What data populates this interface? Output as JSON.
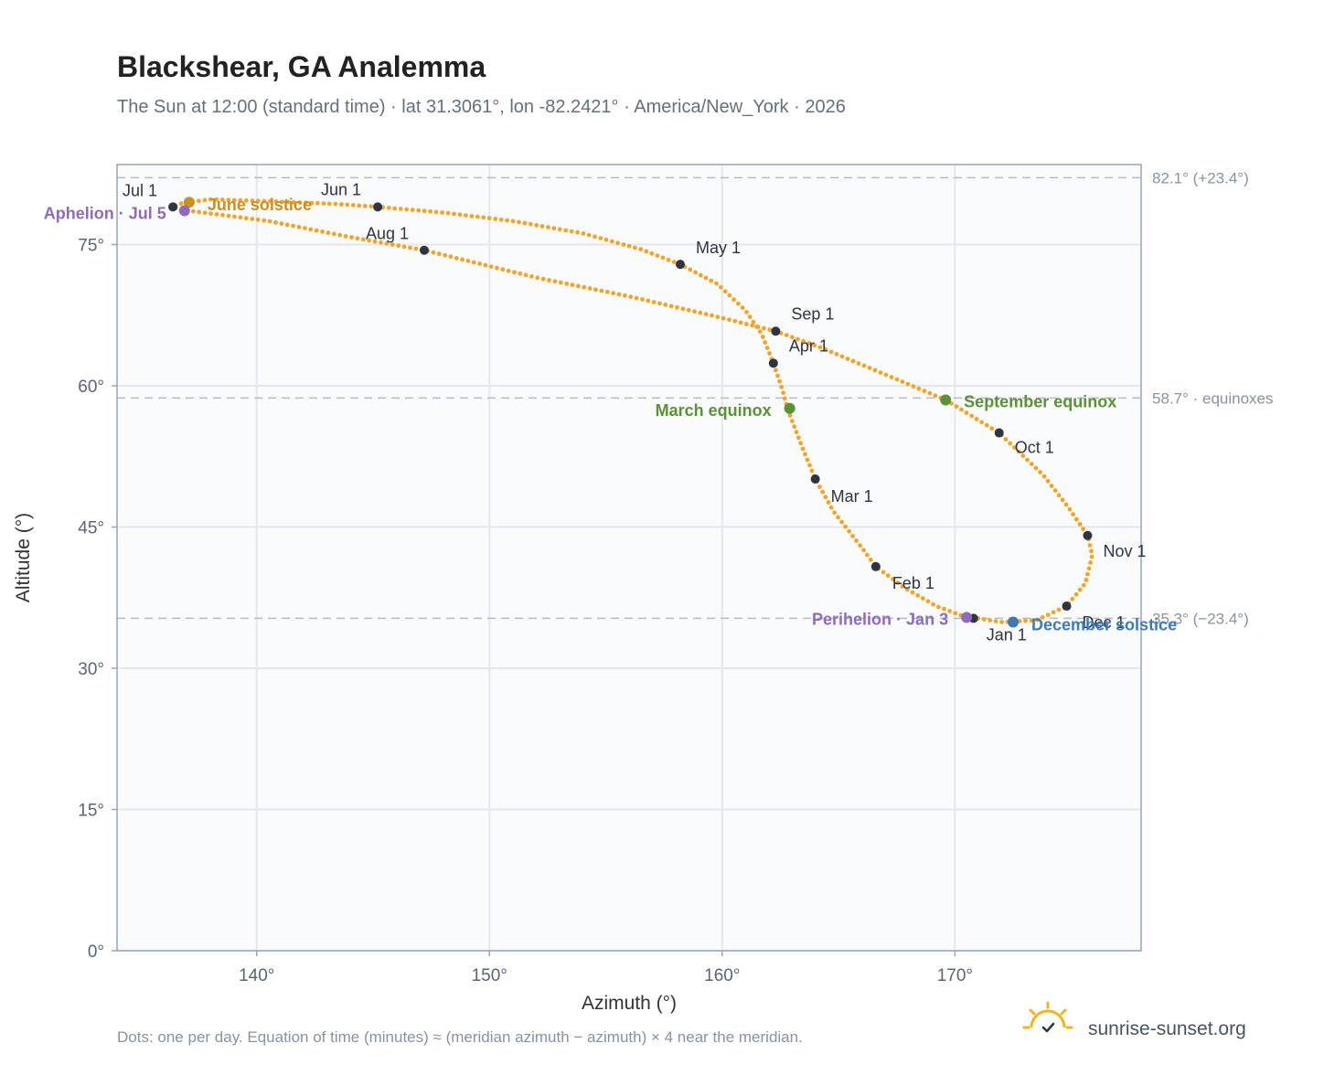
{
  "chart_data": {
    "type": "scatter",
    "title": "Blackshear, GA Analemma",
    "subtitle": "The Sun at 12:00 (standard time) · lat 31.3061°, lon -82.2421° · America/New_York · 2026",
    "xlabel": "Azimuth (°)",
    "ylabel": "Altitude (°)",
    "xlim": [
      134,
      178
    ],
    "ylim": [
      0,
      82.1
    ],
    "x_ticks": [
      140,
      150,
      160,
      170
    ],
    "x_tick_labels": [
      "140°",
      "150°",
      "160°",
      "170°"
    ],
    "y_ticks": [
      0,
      15,
      30,
      45,
      60,
      75
    ],
    "y_tick_labels": [
      "0°",
      "15°",
      "30°",
      "45°",
      "60°",
      "75°"
    ],
    "grid": true,
    "reference_lines": [
      {
        "y": 82.1,
        "label": "82.1° (+23.4°)"
      },
      {
        "y": 58.7,
        "label": "58.7° · equinoxes"
      },
      {
        "y": 35.3,
        "label": "35.3° (−23.4°)"
      }
    ],
    "path_points": [
      [
        171.0,
        35.3
      ],
      [
        172.0,
        34.9
      ],
      [
        173.5,
        35.1
      ],
      [
        174.8,
        36.6
      ],
      [
        175.6,
        39.0
      ],
      [
        175.9,
        42.0
      ],
      [
        175.7,
        44.1
      ],
      [
        174.9,
        47.0
      ],
      [
        173.8,
        50.5
      ],
      [
        171.9,
        55.0
      ],
      [
        169.6,
        58.5
      ],
      [
        167.0,
        61.2
      ],
      [
        164.3,
        64.0
      ],
      [
        162.3,
        65.8
      ],
      [
        159.5,
        67.5
      ],
      [
        156.0,
        69.5
      ],
      [
        152.0,
        71.5
      ],
      [
        147.2,
        74.4
      ],
      [
        144.0,
        75.8
      ],
      [
        140.5,
        77.5
      ],
      [
        138.0,
        78.3
      ],
      [
        136.8,
        78.7
      ],
      [
        136.4,
        79.0
      ],
      [
        136.8,
        79.4
      ],
      [
        138.0,
        79.8
      ],
      [
        140.5,
        79.6
      ],
      [
        143.5,
        79.3
      ],
      [
        145.2,
        79.0
      ],
      [
        148.0,
        78.4
      ],
      [
        151.0,
        77.5
      ],
      [
        154.0,
        76.2
      ],
      [
        156.5,
        74.5
      ],
      [
        158.2,
        72.9
      ],
      [
        159.8,
        70.8
      ],
      [
        161.0,
        68.0
      ],
      [
        161.7,
        65.5
      ],
      [
        162.2,
        62.4
      ],
      [
        162.6,
        59.5
      ],
      [
        162.8,
        57.6
      ],
      [
        163.2,
        55.0
      ],
      [
        163.6,
        52.5
      ],
      [
        164.0,
        50.1
      ],
      [
        164.8,
        46.6
      ],
      [
        166.0,
        42.8
      ],
      [
        166.6,
        40.8
      ],
      [
        167.8,
        38.6
      ],
      [
        169.2,
        36.6
      ],
      [
        170.5,
        35.4
      ],
      [
        171.0,
        35.3
      ]
    ],
    "month_markers": [
      {
        "label": "Jan 1",
        "x": 170.8,
        "y": 35.3
      },
      {
        "label": "Feb 1",
        "x": 166.6,
        "y": 40.8
      },
      {
        "label": "Mar 1",
        "x": 164.0,
        "y": 50.1
      },
      {
        "label": "Apr 1",
        "x": 162.2,
        "y": 62.4
      },
      {
        "label": "May 1",
        "x": 158.2,
        "y": 72.9
      },
      {
        "label": "Jun 1",
        "x": 145.2,
        "y": 79.0
      },
      {
        "label": "Jul 1",
        "x": 136.4,
        "y": 79.0
      },
      {
        "label": "Aug 1",
        "x": 147.2,
        "y": 74.4
      },
      {
        "label": "Sep 1",
        "x": 162.3,
        "y": 65.8
      },
      {
        "label": "Oct 1",
        "x": 171.9,
        "y": 55.0
      },
      {
        "label": "Nov 1",
        "x": 175.7,
        "y": 44.1
      },
      {
        "label": "Dec 1",
        "x": 174.8,
        "y": 36.6
      }
    ],
    "events": [
      {
        "label": "June solstice",
        "x": 137.1,
        "y": 79.5,
        "color": "#c8901e"
      },
      {
        "label": "Aphelion · Jul 5",
        "x": 136.9,
        "y": 78.6,
        "color": "#8e6bbf"
      },
      {
        "label": "March equinox",
        "x": 162.9,
        "y": 57.6,
        "color": "#5a9236"
      },
      {
        "label": "September equinox",
        "x": 169.6,
        "y": 58.5,
        "color": "#5a9236"
      },
      {
        "label": "Perihelion · Jan 3",
        "x": 170.5,
        "y": 35.4,
        "color": "#8e6bbf"
      },
      {
        "label": "December solstice",
        "x": 172.5,
        "y": 34.9,
        "color": "#3d7ab8"
      }
    ],
    "colors": {
      "path": "#f2a528",
      "marker": "#2f3540",
      "plot_bg": "#f9fbfd",
      "grid": "#e4e8ee",
      "frame": "#9aa4b2",
      "ref_line": "#b4bcc7"
    }
  },
  "footnote": "Dots: one per day. Equation of time (minutes) ≈ (meridian azimuth − azimuth) × 4 near the meridian.",
  "brand": {
    "name": "sunrise-sunset.org",
    "icon": "sun-logo-icon",
    "color": "#f2b51e"
  }
}
